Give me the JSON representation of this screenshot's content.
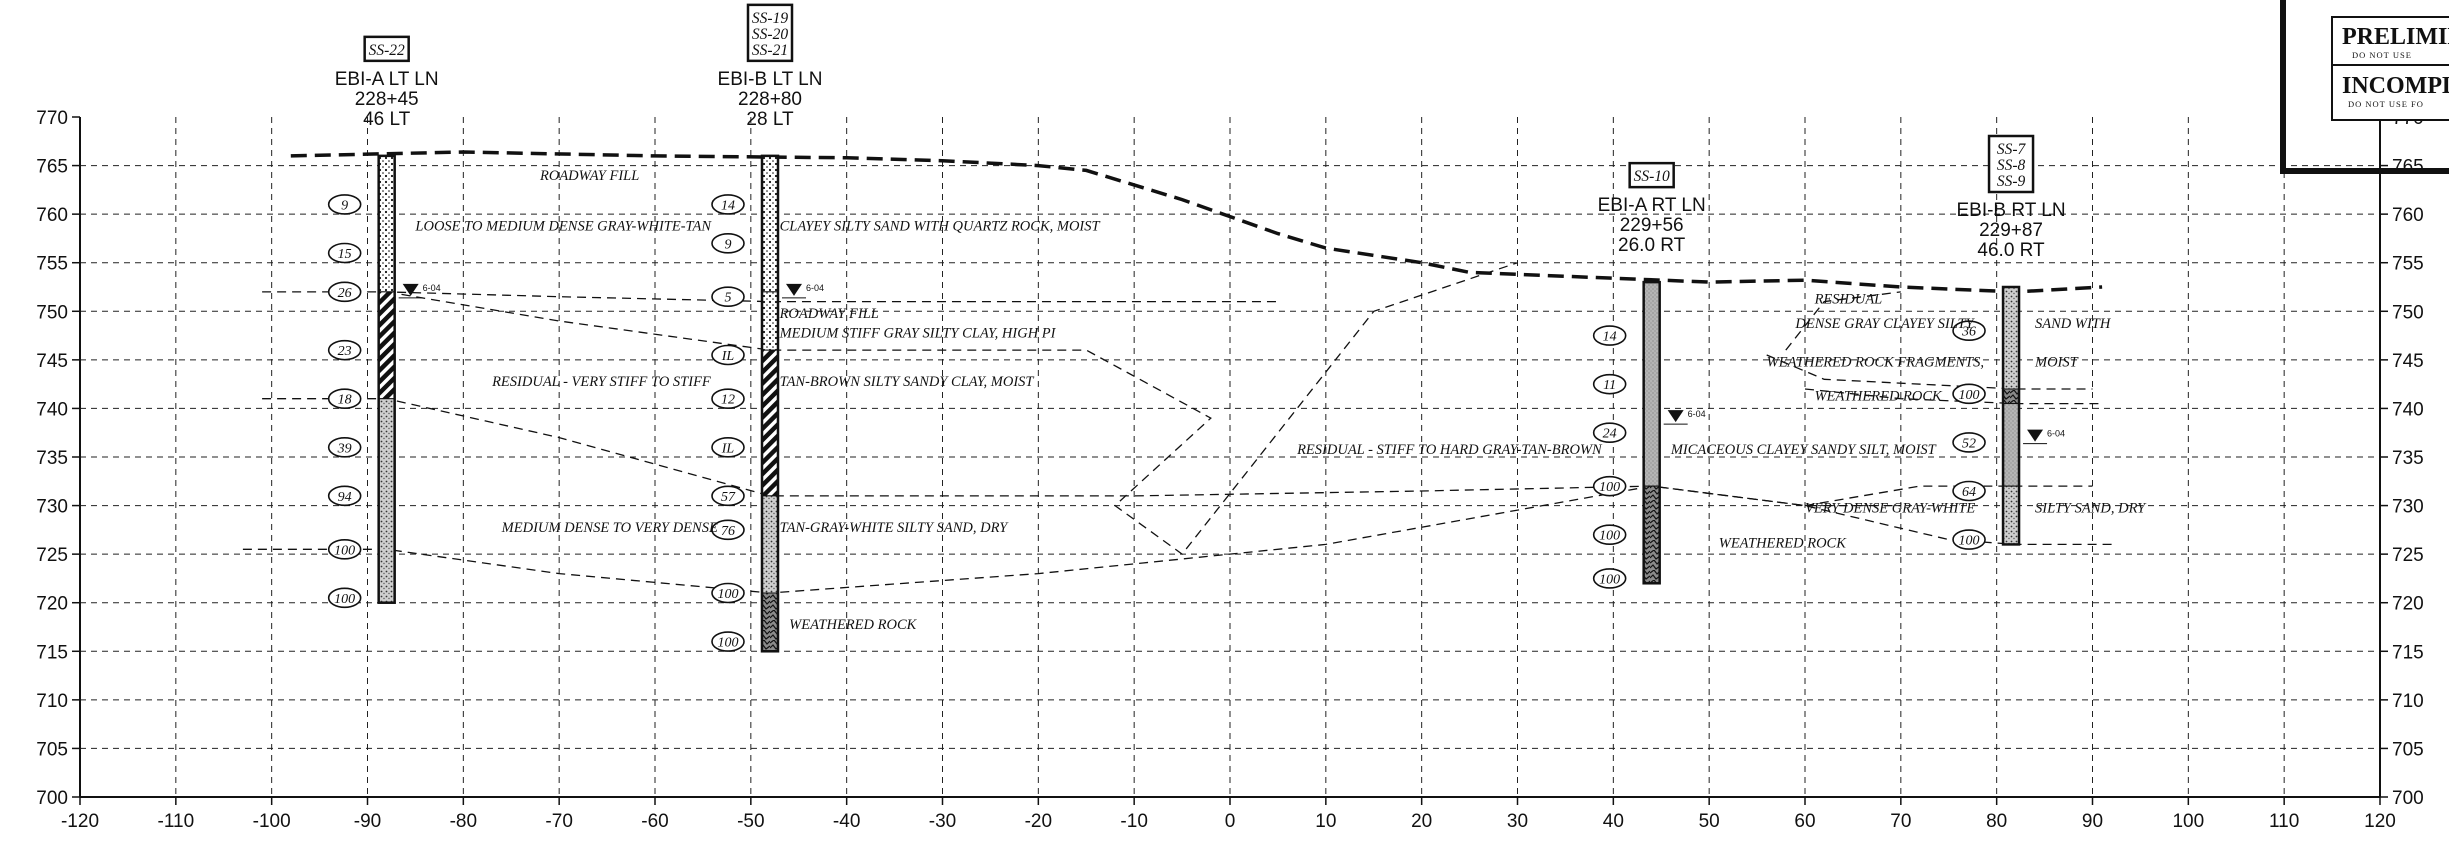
{
  "stamp": {
    "line1": "PRELIMIN",
    "line1_sub": "DO NOT USE",
    "line2": "INCOMPL",
    "line2_sub": "DO NOT USE FO"
  },
  "axes": {
    "x_min": -120,
    "x_max": 120,
    "x_step": 10,
    "y_min": 700,
    "y_max": 770,
    "y_step": 5,
    "x_ticks": [
      "-120",
      "-110",
      "-100",
      "-90",
      "-80",
      "-70",
      "-60",
      "-50",
      "-40",
      "-30",
      "-20",
      "-10",
      "0",
      "10",
      "20",
      "30",
      "40",
      "50",
      "60",
      "70",
      "80",
      "90",
      "100",
      "110",
      "120"
    ],
    "y_ticks": [
      "700",
      "705",
      "710",
      "715",
      "720",
      "725",
      "730",
      "735",
      "740",
      "745",
      "750",
      "755",
      "760",
      "765",
      "770"
    ],
    "grid": "dashed"
  },
  "borings": [
    {
      "id": "ss22",
      "box_lines": [
        "SS-22"
      ],
      "header": [
        "EBI-A LT LN",
        "228+45",
        "46 LT"
      ],
      "x": -88,
      "top": 766,
      "bottom": 720,
      "water": {
        "elev": 752,
        "label": "6-04"
      },
      "n_values": [
        {
          "label": "9",
          "elev": 761
        },
        {
          "label": "15",
          "elev": 756
        },
        {
          "label": "26",
          "elev": 752
        },
        {
          "label": "23",
          "elev": 746
        },
        {
          "label": "18",
          "elev": 741
        },
        {
          "label": "39",
          "elev": 736
        },
        {
          "label": "94",
          "elev": 731
        },
        {
          "label": "100",
          "elev": 725.5
        },
        {
          "label": "100",
          "elev": 720.5
        }
      ],
      "layers": [
        {
          "top": 766,
          "bottom": 752,
          "pattern": "fill"
        },
        {
          "top": 752,
          "bottom": 741,
          "pattern": "clay"
        },
        {
          "top": 741,
          "bottom": 720,
          "pattern": "sand"
        }
      ]
    },
    {
      "id": "ss19",
      "box_lines": [
        "SS-19",
        "SS-20",
        "SS-21"
      ],
      "header": [
        "EBI-B LT LN",
        "228+80",
        "28 LT"
      ],
      "x": -48,
      "top": 766,
      "bottom": 715,
      "water": {
        "elev": 752,
        "label": "6-04"
      },
      "n_values": [
        {
          "label": "14",
          "elev": 761
        },
        {
          "label": "9",
          "elev": 757
        },
        {
          "label": "5",
          "elev": 751.5
        },
        {
          "label": "IL",
          "elev": 745.5
        },
        {
          "label": "12",
          "elev": 741
        },
        {
          "label": "IL",
          "elev": 736
        },
        {
          "label": "57",
          "elev": 731
        },
        {
          "label": "76",
          "elev": 727.5
        },
        {
          "label": "100",
          "elev": 721
        },
        {
          "label": "100",
          "elev": 716
        }
      ],
      "layers": [
        {
          "top": 766,
          "bottom": 752,
          "pattern": "fill"
        },
        {
          "top": 752,
          "bottom": 746,
          "pattern": "fill"
        },
        {
          "top": 746,
          "bottom": 731,
          "pattern": "clay"
        },
        {
          "top": 731,
          "bottom": 721,
          "pattern": "sand"
        },
        {
          "top": 721,
          "bottom": 715,
          "pattern": "rock"
        }
      ]
    },
    {
      "id": "ss10",
      "box_lines": [
        "SS-10"
      ],
      "header": [
        "EBI-A RT LN",
        "229+56",
        "26.0 RT"
      ],
      "x": 44,
      "top": 753,
      "bottom": 722,
      "water": {
        "elev": 739,
        "label": "6-04"
      },
      "n_values": [
        {
          "label": "14",
          "elev": 747.5
        },
        {
          "label": "11",
          "elev": 742.5
        },
        {
          "label": "24",
          "elev": 737.5
        },
        {
          "label": "100",
          "elev": 732
        },
        {
          "label": "100",
          "elev": 727
        },
        {
          "label": "100",
          "elev": 722.5
        }
      ],
      "layers": [
        {
          "top": 753,
          "bottom": 732,
          "pattern": "silt"
        },
        {
          "top": 732,
          "bottom": 722,
          "pattern": "rock"
        }
      ]
    },
    {
      "id": "ss7",
      "box_lines": [
        "SS-7",
        "SS-8",
        "SS-9"
      ],
      "header": [
        "EBI-B RT LN",
        "229+87",
        "46.0 RT"
      ],
      "x": 81.5,
      "top": 752.5,
      "bottom": 726,
      "water": {
        "elev": 737,
        "label": "6-04"
      },
      "n_values": [
        {
          "label": "36",
          "elev": 748
        },
        {
          "label": "100",
          "elev": 741.5
        },
        {
          "label": "52",
          "elev": 736.5
        },
        {
          "label": "64",
          "elev": 731.5
        },
        {
          "label": "100",
          "elev": 726.5
        }
      ],
      "layers": [
        {
          "top": 752.5,
          "bottom": 742,
          "pattern": "sand"
        },
        {
          "top": 742,
          "bottom": 740.5,
          "pattern": "rock"
        },
        {
          "top": 740.5,
          "bottom": 732,
          "pattern": "silt"
        },
        {
          "top": 732,
          "bottom": 726,
          "pattern": "sand"
        }
      ]
    }
  ],
  "ground_line": [
    [
      -98,
      766
    ],
    [
      -80,
      766.4
    ],
    [
      -60,
      766
    ],
    [
      -40,
      765.8
    ],
    [
      -30,
      765.5
    ],
    [
      -20,
      765
    ],
    [
      -15,
      764.5
    ],
    [
      -5,
      761.5
    ],
    [
      5,
      758
    ],
    [
      10,
      756.5
    ],
    [
      20,
      755
    ],
    [
      25,
      754
    ],
    [
      35,
      753.6
    ],
    [
      50,
      753
    ],
    [
      60,
      753.2
    ],
    [
      70,
      752.5
    ],
    [
      82,
      752
    ],
    [
      91,
      752.5
    ]
  ],
  "strata_lines": [
    [
      [
        -101,
        752
      ],
      [
        -88,
        752
      ],
      [
        -70,
        751.5
      ],
      [
        -48,
        751
      ],
      [
        5,
        751
      ]
    ],
    [
      [
        -88,
        752
      ],
      [
        -70,
        749
      ],
      [
        -48,
        746
      ],
      [
        -15,
        746
      ],
      [
        -2,
        739
      ],
      [
        -12,
        730
      ],
      [
        -5,
        725
      ],
      [
        15,
        750
      ],
      [
        30,
        755
      ]
    ],
    [
      [
        -101,
        741
      ],
      [
        -88,
        741
      ],
      [
        -70,
        737
      ],
      [
        -48,
        731
      ],
      [
        -10,
        731
      ],
      [
        20,
        731.5
      ],
      [
        44,
        732
      ],
      [
        60,
        730
      ],
      [
        70,
        730
      ]
    ],
    [
      [
        -103,
        725.5
      ],
      [
        -88,
        725.5
      ],
      [
        -70,
        723
      ],
      [
        -48,
        721
      ],
      [
        -20,
        723
      ],
      [
        10,
        726
      ],
      [
        44,
        732
      ],
      [
        60,
        730
      ],
      [
        75,
        726.5
      ],
      [
        82,
        726
      ],
      [
        92,
        726
      ]
    ],
    [
      [
        58,
        746
      ],
      [
        62,
        751
      ],
      [
        70,
        752
      ]
    ],
    [
      [
        56,
        745.5
      ],
      [
        62,
        743
      ],
      [
        82,
        742
      ],
      [
        90,
        742
      ]
    ],
    [
      [
        60,
        742
      ],
      [
        70,
        741
      ],
      [
        82,
        740.5
      ],
      [
        91,
        740.5
      ]
    ],
    [
      [
        60,
        730
      ],
      [
        72,
        732
      ],
      [
        82,
        732
      ],
      [
        90,
        732
      ]
    ]
  ],
  "labels": [
    {
      "text": "ROADWAY FILL",
      "x": -72,
      "y": 763.5
    },
    {
      "text": "LOOSE TO MEDIUM DENSE GRAY-WHITE-TAN",
      "x": -85,
      "y": 758.3
    },
    {
      "text": "CLAYEY SILTY SAND WITH QUARTZ ROCK, MOIST",
      "x": -47,
      "y": 758.3
    },
    {
      "text": "ROADWAY FILL",
      "x": -47,
      "y": 749.3
    },
    {
      "text": "MEDIUM STIFF GRAY SILTY CLAY, HIGH PI",
      "x": -47,
      "y": 747.3
    },
    {
      "text": "RESIDUAL - VERY STIFF TO STIFF",
      "x": -77,
      "y": 742.3
    },
    {
      "text": "TAN-BROWN SILTY SANDY CLAY, MOIST",
      "x": -47,
      "y": 742.3
    },
    {
      "text": "RESIDUAL - STIFF TO HARD GRAY-TAN-BROWN",
      "x": 7,
      "y": 735.3
    },
    {
      "text": "MICACEOUS CLAYEY SANDY SILT, MOIST",
      "x": 46,
      "y": 735.3
    },
    {
      "text": "MEDIUM DENSE TO VERY DENSE",
      "x": -76,
      "y": 727.3
    },
    {
      "text": "TAN-GRAY-WHITE SILTY SAND, DRY",
      "x": -47,
      "y": 727.3
    },
    {
      "text": "WEATHERED ROCK",
      "x": -46,
      "y": 717.3
    },
    {
      "text": "WEATHERED ROCK",
      "x": 51,
      "y": 725.7
    },
    {
      "text": "RESIDUAL",
      "x": 61,
      "y": 750.8
    },
    {
      "text": "DENSE GRAY CLAYEY SILTY",
      "x": 59,
      "y": 748.3
    },
    {
      "text": "SAND WITH",
      "x": 84,
      "y": 748.3
    },
    {
      "text": "WEATHERED ROCK FRAGMENTS,",
      "x": 56,
      "y": 744.3
    },
    {
      "text": "MOIST",
      "x": 84,
      "y": 744.3
    },
    {
      "text": "WEATHERED ROCK",
      "x": 61,
      "y": 740.8
    },
    {
      "text": "VERY DENSE GRAY-WHITE",
      "x": 60,
      "y": 729.3
    },
    {
      "text": "SILTY SAND, DRY",
      "x": 84,
      "y": 729.3
    }
  ]
}
